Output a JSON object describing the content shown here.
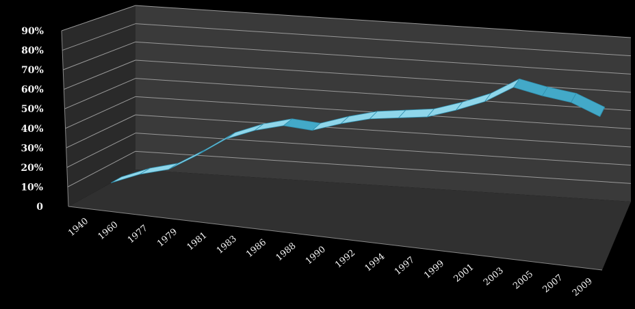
{
  "chart_data": {
    "type": "area",
    "view": "3d-ribbon",
    "title": "",
    "xlabel": "",
    "ylabel": "",
    "ylim": [
      0,
      90
    ],
    "y_ticks": [
      "0",
      "10%",
      "20%",
      "30%",
      "40%",
      "50%",
      "60%",
      "70%",
      "80%",
      "90%"
    ],
    "y_tick_values": [
      0,
      10,
      20,
      30,
      40,
      50,
      60,
      70,
      80,
      90
    ],
    "categories": [
      "1940",
      "1960",
      "1977",
      "1979",
      "1981",
      "1983",
      "1986",
      "1988",
      "1990",
      "1992",
      "1994",
      "1997",
      "1999",
      "2001",
      "2003",
      "2005",
      "2007",
      "2009"
    ],
    "series": [
      {
        "values": [
          5,
          11,
          15,
          24,
          34,
          40,
          44,
          43,
          48,
          52,
          54,
          56,
          61,
          67,
          76,
          73,
          71,
          65
        ],
        "color": "#5bb8d4"
      }
    ],
    "grid": true,
    "legend": "none"
  },
  "colors": {
    "background": "#000000",
    "back_wall": "#3a3a3a",
    "floor": "#2f2f2f",
    "gridline": "#9a9a9a",
    "ribbon_top": "#8fd6ea",
    "ribbon_front": "#43a9c8",
    "axis_text": "#f2f2f2"
  }
}
